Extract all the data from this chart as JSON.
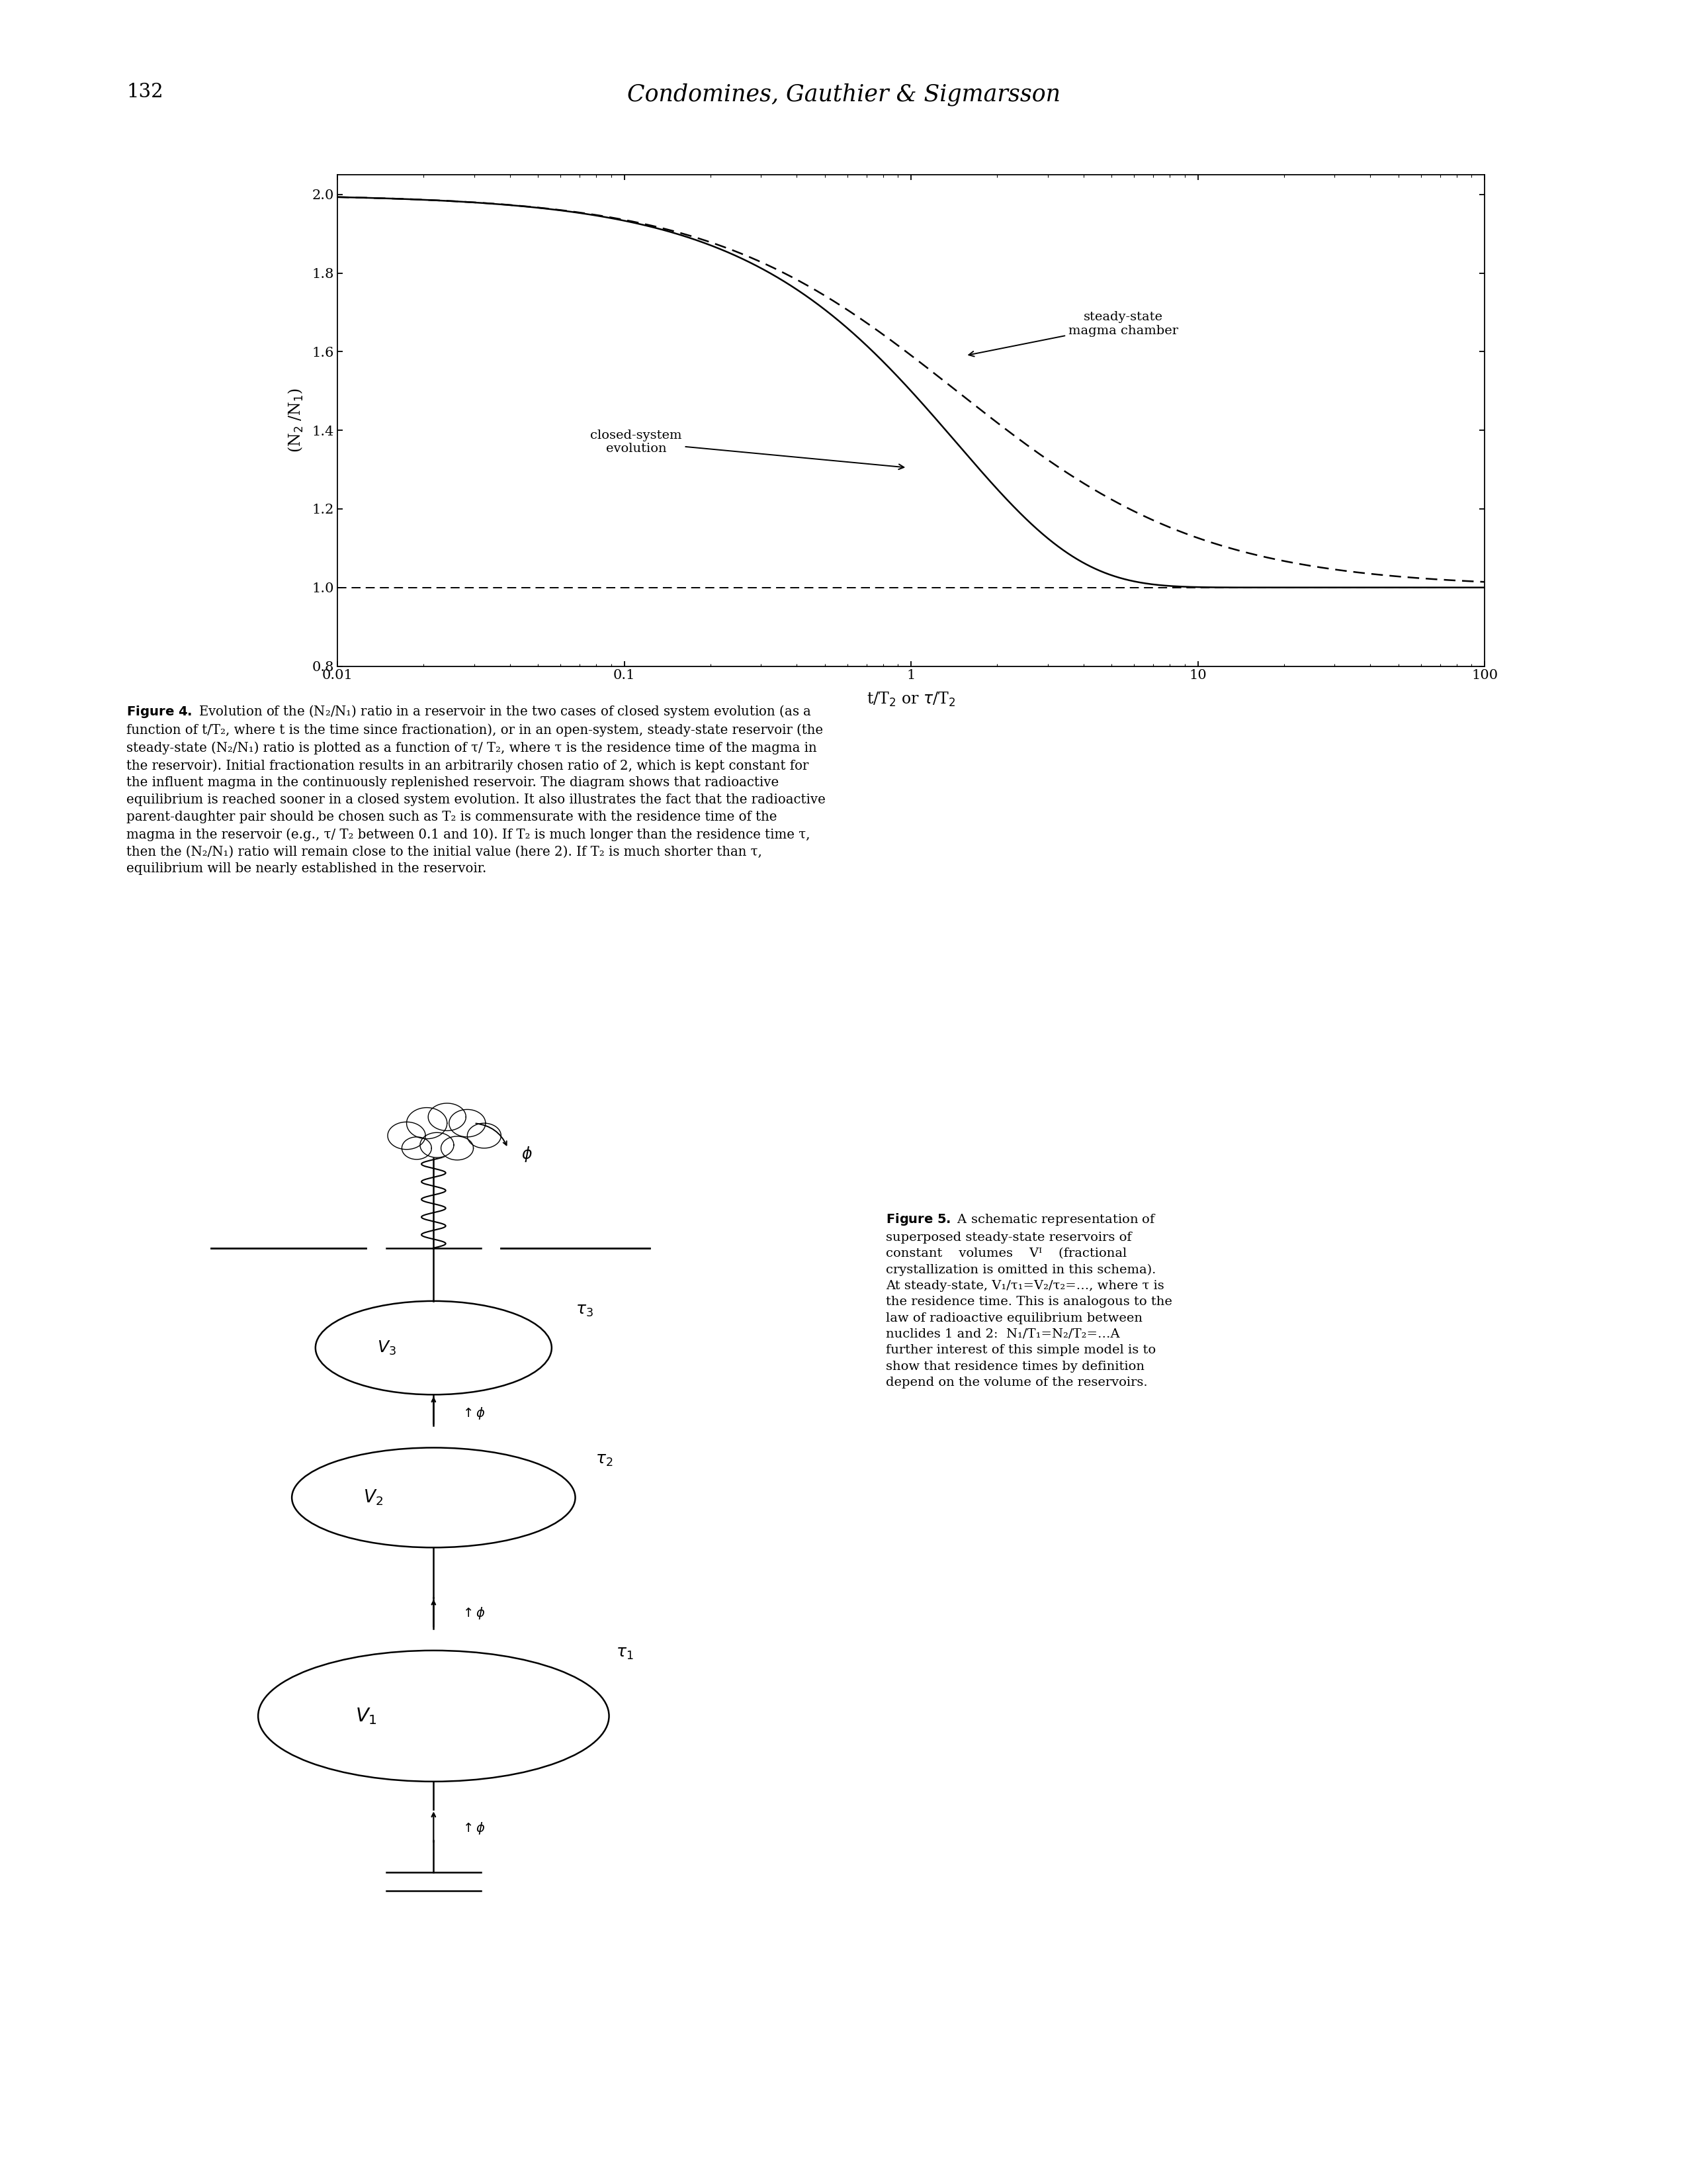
{
  "page_number": "132",
  "header_title": "Condomines, Gauthier & Sigmarsson",
  "xlim_log": [
    -2,
    2
  ],
  "ylim": [
    0.8,
    2.05
  ],
  "yticks": [
    0.8,
    1.0,
    1.2,
    1.4,
    1.6,
    1.8,
    2.0
  ],
  "xtick_labels": [
    "0.01",
    "0.1",
    "1",
    "10",
    "100"
  ],
  "xtick_vals": [
    0.01,
    0.1,
    1,
    10,
    100
  ],
  "xlabel": "t/T$_2$ or $\\tau$/T$_2$",
  "ylabel": "(N$_2$ /N$_1$)",
  "initial_ratio": 2.0,
  "closed_system_label": "closed-system\nevolution",
  "steady_state_label": "steady-state\nmagma chamber",
  "background_color": "#ffffff",
  "line_color": "#000000"
}
